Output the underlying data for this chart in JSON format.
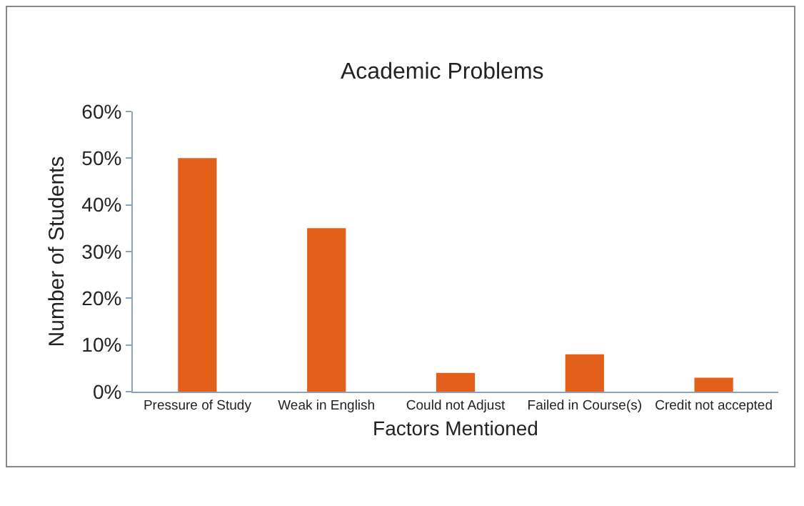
{
  "chart_data": {
    "type": "bar",
    "title": "Academic Problems",
    "xlabel": "Factors Mentioned",
    "ylabel": "Number of Students",
    "categories": [
      "Pressure of Study",
      "Weak in English",
      "Could not Adjust",
      "Failed in Course(s)",
      "Credit not accepted"
    ],
    "values": [
      50,
      35,
      4,
      8,
      3
    ],
    "color": "#e2601a",
    "ylim": [
      0,
      60
    ],
    "yticks": [
      {
        "value": 0,
        "label": "0%"
      },
      {
        "value": 10,
        "label": "10%"
      },
      {
        "value": 20,
        "label": "20%"
      },
      {
        "value": 30,
        "label": "30%"
      },
      {
        "value": 40,
        "label": "40%"
      },
      {
        "value": 50,
        "label": "50%"
      },
      {
        "value": 60,
        "label": "60%"
      }
    ],
    "grid": false
  }
}
